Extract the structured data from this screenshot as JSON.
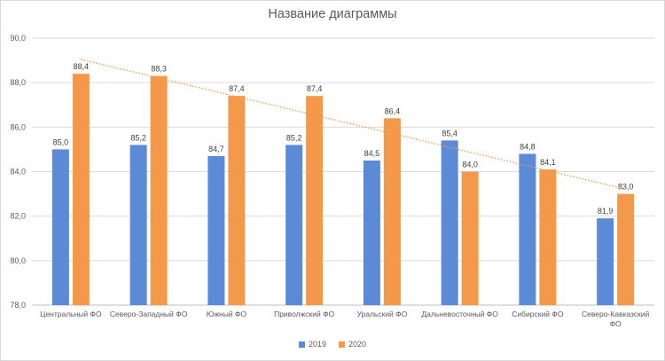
{
  "chart_data": {
    "type": "bar",
    "title": "Название диаграммы",
    "categories": [
      [
        "Центральный ФО"
      ],
      [
        "Северо-Западный ФО"
      ],
      [
        "Южный ФО"
      ],
      [
        "Приволжский ФО"
      ],
      [
        "Уральский ФО"
      ],
      [
        "Дальневосточный ФО"
      ],
      [
        "Сибирский ФО"
      ],
      [
        "Северо-Кавказский",
        "ФО"
      ]
    ],
    "series": [
      {
        "name": "2019",
        "color": "#5b8bd6",
        "values": [
          85.0,
          85.2,
          84.7,
          85.2,
          84.5,
          85.4,
          84.8,
          81.9
        ],
        "labels": [
          "85,0",
          "85,2",
          "84,7",
          "85,2",
          "84,5",
          "85,4",
          "84,8",
          "81,9"
        ]
      },
      {
        "name": "2020",
        "color": "#f4984a",
        "values": [
          88.4,
          88.3,
          87.4,
          87.4,
          86.4,
          84.0,
          84.1,
          83.0
        ],
        "labels": [
          "88,4",
          "88,3",
          "87,4",
          "87,4",
          "86,4",
          "84,0",
          "84,1",
          "83,0"
        ]
      }
    ],
    "trendline": {
      "series": "2020",
      "type": "linear",
      "color": "#f4984a",
      "style": "dotted"
    },
    "ylim": [
      78.0,
      90.0
    ],
    "yticks": [
      78.0,
      80.0,
      82.0,
      84.0,
      86.0,
      88.0,
      90.0
    ],
    "ytick_labels": [
      "78,0",
      "80,0",
      "82,0",
      "84,0",
      "86,0",
      "88,0",
      "90,0"
    ],
    "grid": true,
    "legend_position": "bottom"
  }
}
